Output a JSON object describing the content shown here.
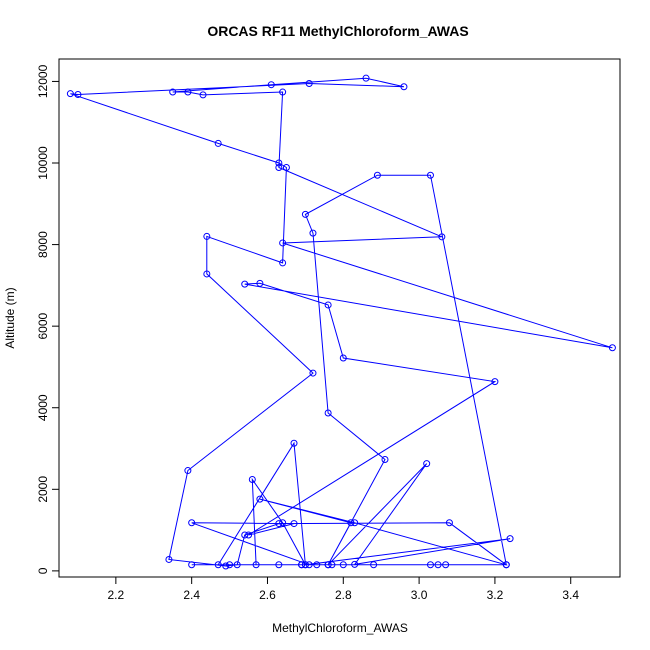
{
  "chart_data": {
    "type": "line",
    "title": "ORCAS RF11 MethylChloroform_AWAS",
    "xlabel": "MethylChloroform_AWAS",
    "ylabel": "Altitude (m)",
    "xlim": [
      2.05,
      3.53
    ],
    "ylim": [
      -150,
      12550
    ],
    "xticks": [
      2.2,
      2.4,
      2.6,
      2.8,
      3.0,
      3.2,
      3.4
    ],
    "xtick_labels": [
      "2.2",
      "2.4",
      "2.6",
      "2.8",
      "3.0",
      "3.2",
      "3.4"
    ],
    "yticks": [
      0,
      2000,
      4000,
      6000,
      8000,
      10000,
      12000
    ],
    "ytick_labels": [
      "0",
      "2000",
      "4000",
      "6000",
      "8000",
      "10000",
      "12000"
    ],
    "grid": false,
    "legend": "none",
    "color": "#0000ff",
    "series": [
      {
        "x": [
          2.69,
          2.8,
          2.88,
          3.03,
          3.05,
          3.07,
          2.69,
          2.77,
          3.23,
          3.08,
          2.63,
          2.54,
          2.52,
          2.49,
          2.34,
          2.39,
          2.72,
          2.44,
          2.44,
          2.64,
          2.65,
          2.63,
          2.47,
          2.08,
          2.1,
          2.71,
          2.96,
          2.86,
          2.61,
          2.35,
          2.39,
          2.43,
          2.64,
          2.63,
          3.06,
          2.64,
          3.51,
          2.54,
          2.58,
          2.76,
          2.8,
          3.2,
          2.55,
          2.67,
          2.4,
          2.71,
          2.57,
          2.56,
          2.64,
          2.7,
          3.24,
          2.83,
          3.02,
          2.76,
          2.91,
          2.76,
          2.72,
          2.7,
          2.89,
          3.03,
          3.23,
          2.83,
          2.58,
          2.82,
          2.76,
          2.73,
          2.63,
          2.5,
          2.4,
          2.47,
          2.67,
          2.7
        ],
        "y": [
          150,
          150,
          150,
          150,
          150,
          150,
          150,
          150,
          150,
          1180,
          1160,
          880,
          150,
          120,
          280,
          2460,
          4850,
          7280,
          8200,
          7550,
          9890,
          10000,
          10480,
          11700,
          11680,
          11950,
          11870,
          12080,
          11920,
          11740,
          11740,
          11670,
          11740,
          9890,
          8190,
          8040,
          5470,
          7030,
          7050,
          6520,
          5220,
          4640,
          880,
          1160,
          1180,
          150,
          150,
          2240,
          1180,
          150,
          790,
          160,
          2630,
          150,
          2730,
          3870,
          8280,
          8740,
          9700,
          9700,
          150,
          1180,
          1760,
          1180,
          150,
          150,
          150,
          150,
          150,
          150,
          3130,
          150
        ]
      }
    ]
  }
}
